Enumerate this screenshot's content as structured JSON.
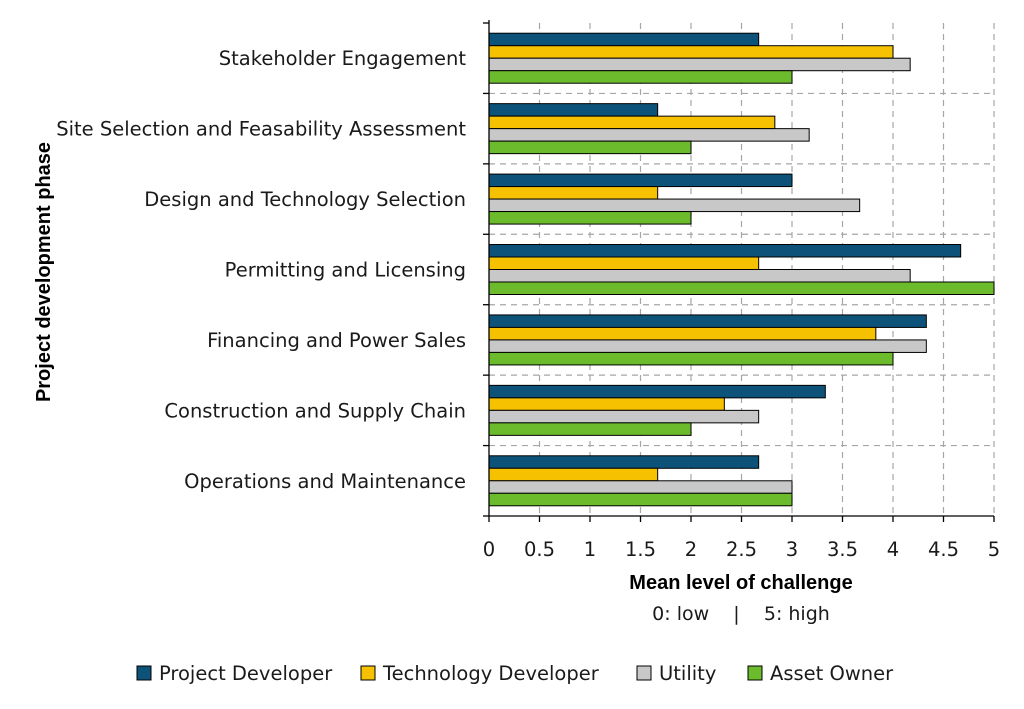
{
  "chart_data": {
    "type": "bar",
    "orientation": "horizontal",
    "categories": [
      "Stakeholder Engagement",
      "Site Selection and Feasability Assessment",
      "Design and Technology Selection",
      "Permitting and Licensing",
      "Financing and Power Sales",
      "Construction and Supply Chain",
      "Operations and Maintenance"
    ],
    "series": [
      {
        "name": "Project Developer",
        "color": "#0d5279",
        "values": [
          2.67,
          1.67,
          3.0,
          4.67,
          4.33,
          3.33,
          2.67
        ]
      },
      {
        "name": "Technology Developer",
        "color": "#f6c100",
        "values": [
          4.0,
          2.83,
          1.67,
          2.67,
          3.83,
          2.33,
          1.67
        ]
      },
      {
        "name": "Utility",
        "color": "#c8c8c8",
        "values": [
          4.17,
          3.17,
          3.67,
          4.17,
          4.33,
          2.67,
          3.0
        ]
      },
      {
        "name": "Asset Owner",
        "color": "#6cbb2c",
        "values": [
          3.0,
          2.0,
          2.0,
          5.0,
          4.0,
          2.0,
          3.0
        ]
      }
    ],
    "xlabel": "Mean level of challenge",
    "xlabel_sub": "0: low    |    5: high",
    "ylabel": "Project development phase",
    "xlim": [
      0,
      5
    ],
    "xticks": [
      "0",
      "0.5",
      "1",
      "1.5",
      "2",
      "2.5",
      "3",
      "3.5",
      "4",
      "4.5",
      "5"
    ],
    "grid": true,
    "legend_position": "bottom"
  }
}
